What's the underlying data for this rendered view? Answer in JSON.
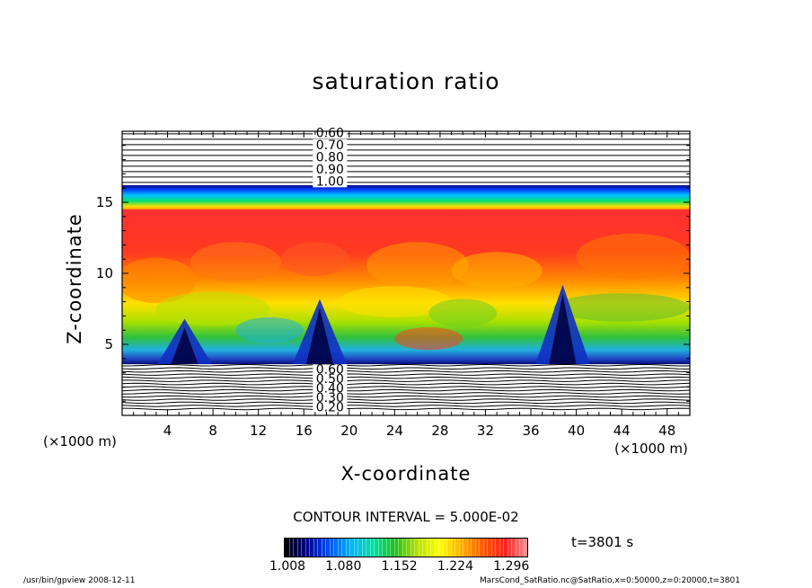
{
  "chart_data": {
    "type": "heatmap",
    "title": "saturation ratio",
    "xlabel": "X-coordinate",
    "ylabel": "Z-coordinate",
    "x_unit": "(×1000 m)",
    "xlim": [
      0,
      50
    ],
    "ylim": [
      0,
      20
    ],
    "x_ticks": [
      4,
      8,
      12,
      16,
      20,
      24,
      28,
      32,
      36,
      40,
      44,
      48
    ],
    "y_ticks": [
      5,
      10,
      15
    ],
    "color_range": [
      1.008,
      1.32
    ],
    "colorbar_ticks": [
      1.008,
      1.08,
      1.152,
      1.224,
      1.296
    ],
    "contour_interval": "CONTOUR INTERVAL = 5.000E-02",
    "upper_contour_labels": [
      "0.60",
      "0.70",
      "0.80",
      "0.90",
      "1.00"
    ],
    "lower_contour_labels": [
      "0.60",
      "0.50",
      "0.40",
      "0.30",
      "0.20"
    ],
    "time": "t=3801 s",
    "colormap": [
      "#000000",
      "#00008b",
      "#0050ff",
      "#00b4ff",
      "#00e0a0",
      "#20c020",
      "#b4e000",
      "#ffff00",
      "#ffb000",
      "#ff5a00",
      "#ff2020",
      "#ff9090"
    ]
  },
  "labels": {
    "title": "saturation ratio",
    "xlabel": "X-coordinate",
    "ylabel": "Z-coordinate",
    "xunit_left": "(×1000 m)",
    "xunit_right": "(×1000 m)",
    "contour_interval": "CONTOUR INTERVAL = 5.000E-02",
    "time": "t=3801 s",
    "footer_left": "/usr/bin/gpview   2008-12-11",
    "footer_right": "MarsCond_SatRatio.nc@SatRatio,x=0:50000,z=0:20000,t=3801"
  }
}
